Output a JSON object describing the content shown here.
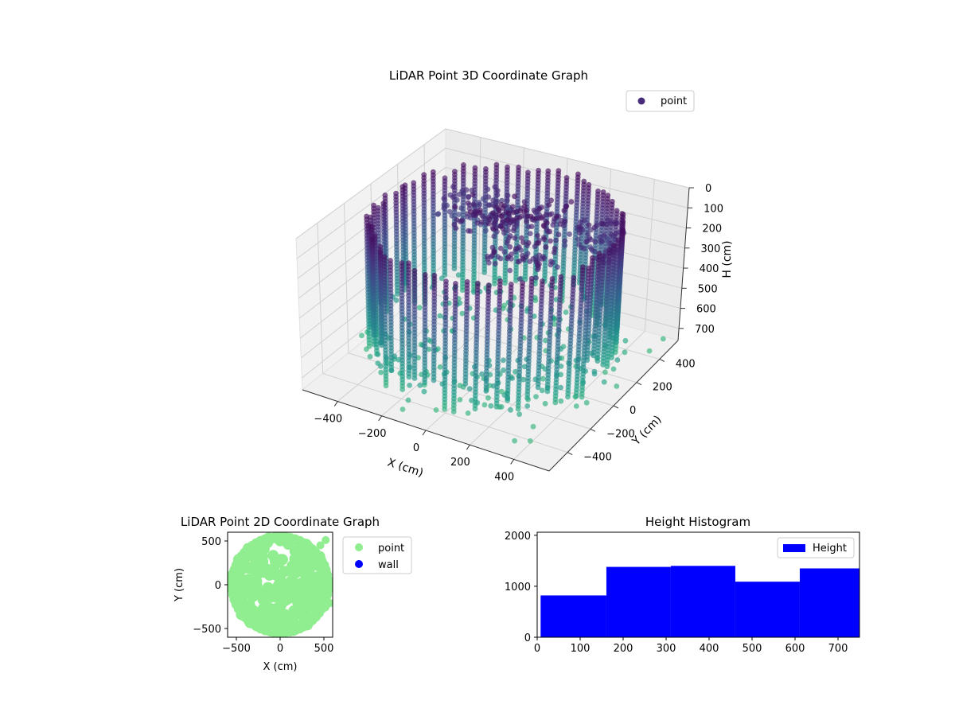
{
  "chart_data": [
    {
      "type": "scatter3d",
      "title": "LiDAR Point 3D Coordinate Graph",
      "xlabel": "X (cm)",
      "ylabel": "Y (cm)",
      "zlabel": "H (cm)",
      "xticks": [
        "−400",
        "−200",
        "0",
        "200",
        "400"
      ],
      "yticks": [
        "400",
        "200",
        "0",
        "−200",
        "−400"
      ],
      "zticks": [
        "0",
        "100",
        "200",
        "300",
        "400",
        "500",
        "600",
        "700"
      ],
      "xlim": [
        -560,
        560
      ],
      "ylim": [
        -560,
        560
      ],
      "zlim": [
        760,
        0
      ],
      "zaxis_inverted": true,
      "colormap": "viridis",
      "legend": {
        "location": "upper right",
        "entries": [
          "point"
        ]
      },
      "legend_color": "#472c7a",
      "description_of_data": "Dense ring of points around radius ~490 cm spanning heights ~0-700 cm, plus interior clusters near the top (H~0-150) and scattered floor points (H~700).",
      "series": [
        {
          "name": "point",
          "wall_ring": {
            "radius": 490,
            "h_range": [
              30,
              700
            ],
            "color_low_h": "#440154",
            "color_high_h": "#21918c"
          },
          "interior_clusters": [
            {
              "x": 50,
              "y": 200,
              "h": 30
            },
            {
              "x": -100,
              "y": 100,
              "h": 40
            },
            {
              "x": 150,
              "y": -50,
              "h": 60
            },
            {
              "x": -250,
              "y": 300,
              "h": 120
            },
            {
              "x": 300,
              "y": 250,
              "h": 90
            }
          ],
          "floor_points": {
            "h": 700,
            "radius_range": [
              200,
              560
            ]
          },
          "outliers": [
            {
              "x": 520,
              "y": 380,
              "h": 720
            },
            {
              "x": 540,
              "y": 460,
              "h": 700
            },
            {
              "x": 420,
              "y": -460,
              "h": 720
            },
            {
              "x": 380,
              "y": -520,
              "h": 700
            }
          ]
        }
      ]
    },
    {
      "type": "scatter",
      "title": "LiDAR Point 2D Coordinate Graph",
      "xlabel": "X (cm)",
      "ylabel": "Y (cm)",
      "xticks": [
        -500,
        0,
        500
      ],
      "yticks": [
        -500,
        0,
        500
      ],
      "xlim": [
        -600,
        600
      ],
      "ylim": [
        -600,
        600
      ],
      "legend": {
        "location": "outside right",
        "entries": [
          "point",
          "wall"
        ]
      },
      "series": [
        {
          "name": "point",
          "color": "#90ee90",
          "shape": "filled disk",
          "radius_approx": 560,
          "extra_points": [
            [
              520,
              510
            ],
            [
              570,
              -210
            ],
            [
              460,
              450
            ]
          ]
        },
        {
          "name": "wall",
          "color": "#0000ff",
          "values": []
        }
      ]
    },
    {
      "type": "histogram",
      "title": "Height Histogram",
      "xticks": [
        0,
        100,
        200,
        300,
        400,
        500,
        600,
        700
      ],
      "yticks": [
        0,
        1000,
        2000
      ],
      "xlim": [
        0,
        750
      ],
      "ylim": [
        0,
        2060
      ],
      "color": "#0000ff",
      "legend": {
        "location": "upper right",
        "entries": [
          "Height"
        ]
      },
      "bins": [
        {
          "x0": 8,
          "x1": 161,
          "count": 820
        },
        {
          "x0": 161,
          "x1": 311,
          "count": 1380
        },
        {
          "x0": 311,
          "x1": 461,
          "count": 1400
        },
        {
          "x0": 461,
          "x1": 611,
          "count": 1090
        },
        {
          "x0": 611,
          "x1": 760,
          "count": 1350
        }
      ]
    }
  ]
}
